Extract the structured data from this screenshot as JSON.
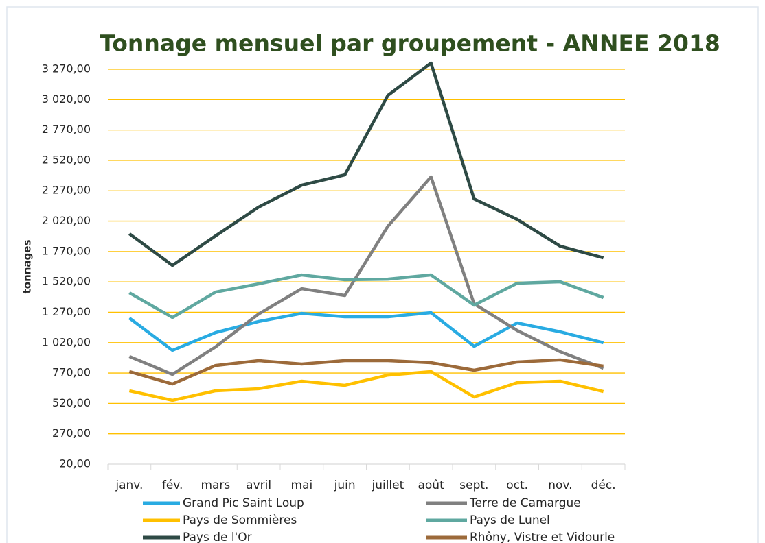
{
  "chart_data": {
    "type": "line",
    "title": "Tonnage mensuel  par groupement - ANNEE 2018",
    "y_label": "tonnages",
    "categories": [
      "janv.",
      "fév.",
      "mars",
      "avril",
      "mai",
      "juin",
      "juillet",
      "août",
      "sept.",
      "oct.",
      "nov.",
      "déc."
    ],
    "series": [
      {
        "name": "Grand Pic Saint Loup",
        "color": "#29abe2",
        "values": [
          1222,
          957,
          1103,
          1194,
          1261,
          1233,
          1233,
          1267,
          990,
          1182,
          1109,
          1019
        ]
      },
      {
        "name": "Terre de Camargue",
        "color": "#808080",
        "values": [
          906,
          759,
          985,
          1256,
          1464,
          1408,
          1978,
          2384,
          1340,
          1120,
          945,
          810
        ]
      },
      {
        "name": "Pays de Sommières",
        "color": "#ffc000",
        "values": [
          624,
          545,
          624,
          641,
          703,
          669,
          753,
          782,
          573,
          691,
          703,
          618
        ]
      },
      {
        "name": "Pays de Lunel",
        "color": "#5fa8a0",
        "values": [
          1430,
          1227,
          1436,
          1504,
          1577,
          1538,
          1543,
          1577,
          1329,
          1509,
          1521,
          1391
        ]
      },
      {
        "name": "Pays de l'Or",
        "color": "#2e4a45",
        "values": [
          1916,
          1656,
          1899,
          2136,
          2316,
          2401,
          3055,
          3321,
          2203,
          2034,
          1814,
          1718
        ]
      },
      {
        "name": "Rhôny, Vistre et Vidourle",
        "color": "#9c6a3a",
        "values": [
          782,
          680,
          832,
          872,
          844,
          872,
          872,
          855,
          793,
          861,
          878,
          827
        ]
      }
    ],
    "ylim": [
      20,
      3270
    ],
    "yticks": [
      {
        "value": 20,
        "label": "20,00"
      },
      {
        "value": 270,
        "label": "270,00"
      },
      {
        "value": 520,
        "label": "520,00"
      },
      {
        "value": 770,
        "label": "770,00"
      },
      {
        "value": 1020,
        "label": "1 020,00"
      },
      {
        "value": 1270,
        "label": "1 270,00"
      },
      {
        "value": 1520,
        "label": "1 520,00"
      },
      {
        "value": 1770,
        "label": "1 770,00"
      },
      {
        "value": 2020,
        "label": "2 020,00"
      },
      {
        "value": 2270,
        "label": "2 270,00"
      },
      {
        "value": 2520,
        "label": "2 520,00"
      },
      {
        "value": 2770,
        "label": "2 770,00"
      },
      {
        "value": 3020,
        "label": "3 020,00"
      },
      {
        "value": 3270,
        "label": "3 270,00"
      }
    ],
    "grid": true,
    "grid_color": "#ffc000",
    "legend": "bottom"
  }
}
